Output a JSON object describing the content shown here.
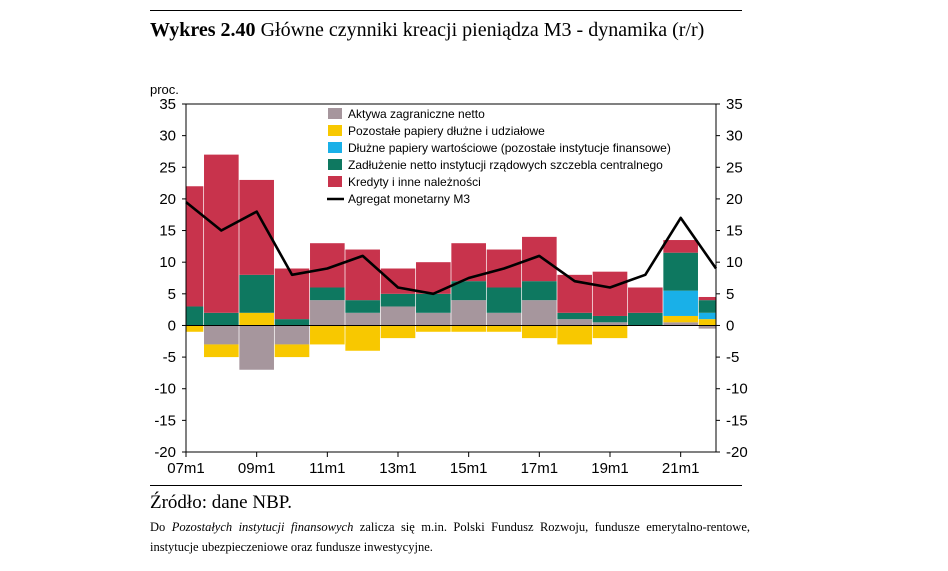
{
  "header": {
    "label": "Wykres 2.40",
    "title": "Główne czynniki kreacji pieniądza M3 - dynamika (r/r)"
  },
  "footer": {
    "source": "Źródło: dane NBP.",
    "note_prefix": "Do ",
    "note_italic": "Pozostałych instytucji finansowych",
    "note_rest": " zalicza się m.in. Polski Fundusz Rozwoju, fundusze emerytalno-rentowe, instytucje ubezpieczeniowe oraz fundusze inwestycyjne."
  },
  "chart_data": {
    "type": "bar",
    "stacked": true,
    "ylabel": "proc.",
    "ylim": [
      -20,
      35
    ],
    "yticks": [
      -20,
      -15,
      -10,
      -5,
      0,
      5,
      10,
      15,
      20,
      25,
      30,
      35
    ],
    "x": [
      "07m1",
      "08m1",
      "09m1",
      "10m1",
      "11m1",
      "12m1",
      "13m1",
      "14m1",
      "15m1",
      "16m1",
      "17m1",
      "18m1",
      "19m1",
      "20m1",
      "21m1",
      "21m4"
    ],
    "xticks": [
      "07m1",
      "09m1",
      "11m1",
      "13m1",
      "15m1",
      "17m1",
      "19m1",
      "21m1"
    ],
    "legend_position": "top-center",
    "series": [
      {
        "name": "Aktywa zagraniczne netto",
        "color": "#A6969D",
        "kind": "bar",
        "values": [
          0,
          -3,
          -7,
          -3,
          4,
          2,
          3,
          2,
          4,
          2,
          4,
          1,
          0.5,
          0,
          0.5,
          -0.5
        ]
      },
      {
        "name": "Pozostałe papiery dłużne i udziałowe",
        "color": "#F8C800",
        "kind": "bar",
        "values": [
          -1,
          -2,
          2,
          -2,
          -3,
          -4,
          -2,
          -1,
          -1,
          -1,
          -2,
          -3,
          -2,
          0,
          1,
          1
        ]
      },
      {
        "name": "Dłużne papiery wartościowe (pozostałe instytucje finansowe)",
        "color": "#19B0E8",
        "kind": "bar",
        "values": [
          0,
          0,
          0,
          0,
          0,
          0,
          0,
          0,
          0,
          0,
          0,
          0,
          0,
          0,
          4,
          1
        ]
      },
      {
        "name": "Zadłużenie netto instytucji rządowych szczebla centralnego",
        "color": "#0E7860",
        "kind": "bar",
        "values": [
          3,
          2,
          6,
          1,
          2,
          2,
          2,
          3,
          3,
          4,
          3,
          1,
          1,
          2,
          6,
          2
        ]
      },
      {
        "name": "Kredyty i inne należności",
        "color": "#C8334C",
        "kind": "bar",
        "values": [
          19,
          25,
          15,
          8,
          7,
          8,
          4,
          5,
          6,
          6,
          7,
          6,
          7,
          4,
          2,
          0.5
        ]
      },
      {
        "name": "Agregat monetarny M3",
        "color": "#000000",
        "kind": "line",
        "values": [
          19.5,
          15,
          18,
          8,
          9,
          11,
          6,
          5,
          7.5,
          9,
          11,
          7,
          6,
          8,
          17,
          9
        ]
      }
    ]
  }
}
